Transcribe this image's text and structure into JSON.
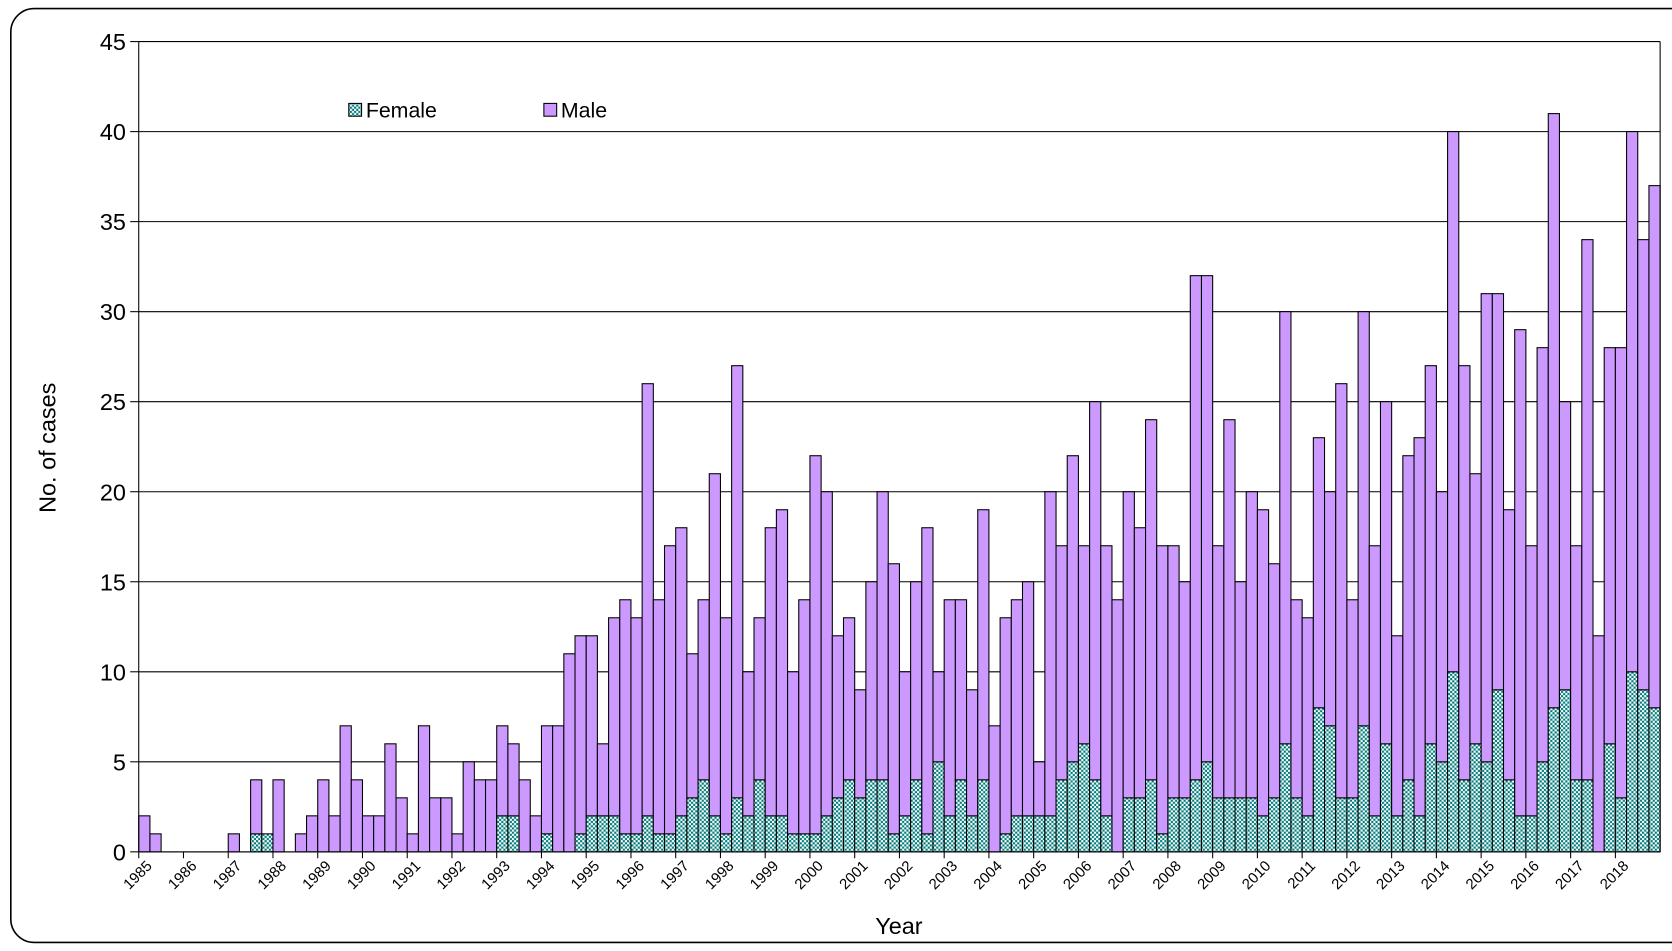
{
  "chart_data": {
    "type": "stacked_bar",
    "x_label": "Year",
    "y_label": "No. of cases",
    "categories": [
      "1985",
      null,
      null,
      null,
      "1986",
      null,
      null,
      null,
      "1987",
      null,
      null,
      null,
      "1988",
      null,
      null,
      null,
      "1989",
      null,
      null,
      null,
      "1990",
      null,
      null,
      null,
      "1991",
      null,
      null,
      null,
      "1992",
      null,
      null,
      null,
      "1993",
      null,
      null,
      null,
      "1994",
      null,
      null,
      null,
      "1995",
      null,
      null,
      null,
      "1996",
      null,
      null,
      null,
      "1997",
      null,
      null,
      null,
      "1998",
      null,
      null,
      null,
      "1999",
      null,
      null,
      null,
      "2000",
      null,
      null,
      null,
      "2001",
      null,
      null,
      null,
      "2002",
      null,
      null,
      null,
      "2003",
      null,
      null,
      null,
      "2004",
      null,
      null,
      null,
      "2005",
      null,
      null,
      null,
      "2006",
      null,
      null,
      null,
      "2007",
      null,
      null,
      null,
      "2008",
      null,
      null,
      null,
      "2009",
      null,
      null,
      null,
      "2010",
      null,
      null,
      null,
      "2011",
      null,
      null,
      null,
      "2012",
      null,
      null,
      null,
      "2013",
      null,
      null,
      null,
      "2014",
      null,
      null,
      null,
      "2015",
      null,
      null,
      null,
      "2016",
      null,
      null,
      null,
      "2017",
      null,
      null,
      null,
      "2018",
      null,
      null,
      null
    ],
    "series": [
      {
        "name": "Female",
        "color": "#007c7c",
        "pattern": "checker",
        "values": [
          0,
          0,
          0,
          0,
          0,
          0,
          0,
          0,
          0,
          0,
          1,
          1,
          0,
          0,
          0,
          0,
          0,
          0,
          0,
          0,
          0,
          0,
          0,
          0,
          0,
          0,
          0,
          0,
          0,
          0,
          0,
          0,
          2,
          2,
          0,
          0,
          1,
          0,
          0,
          1,
          2,
          2,
          2,
          1,
          1,
          2,
          1,
          1,
          2,
          3,
          4,
          2,
          1,
          3,
          2,
          4,
          2,
          2,
          1,
          1,
          1,
          2,
          3,
          4,
          3,
          4,
          4,
          1,
          2,
          4,
          1,
          5,
          2,
          4,
          2,
          4,
          0,
          1,
          2,
          2,
          2,
          2,
          4,
          5,
          6,
          4,
          2,
          0,
          3,
          3,
          4,
          1,
          3,
          3,
          4,
          5,
          3,
          3,
          3,
          3,
          2,
          3,
          6,
          3,
          2,
          8,
          7,
          3,
          3,
          7,
          2,
          6,
          2,
          4,
          2,
          6,
          5,
          10,
          4,
          6,
          5,
          9,
          4,
          2,
          2,
          5,
          8,
          9,
          4,
          4,
          0,
          6,
          3,
          10,
          9,
          8
        ]
      },
      {
        "name": "Male",
        "color": "#cc99ff",
        "values": [
          2,
          1,
          0,
          0,
          0,
          0,
          0,
          0,
          1,
          0,
          3,
          0,
          4,
          0,
          1,
          2,
          4,
          2,
          7,
          4,
          2,
          2,
          6,
          3,
          1,
          7,
          3,
          3,
          1,
          5,
          4,
          4,
          5,
          4,
          4,
          2,
          6,
          7,
          11,
          11,
          10,
          4,
          11,
          13,
          12,
          24,
          13,
          16,
          16,
          8,
          10,
          19,
          12,
          24,
          8,
          9,
          16,
          17,
          9,
          13,
          21,
          18,
          9,
          9,
          6,
          11,
          16,
          15,
          8,
          11,
          17,
          5,
          12,
          10,
          7,
          15,
          7,
          12,
          12,
          13,
          3,
          18,
          13,
          17,
          11,
          21,
          15,
          14,
          17,
          15,
          20,
          16,
          14,
          12,
          28,
          27,
          14,
          21,
          12,
          17,
          17,
          13,
          24,
          11,
          11,
          15,
          13,
          23,
          11,
          23,
          15,
          19,
          10,
          18,
          21,
          21,
          15,
          30,
          23,
          15,
          26,
          22,
          15,
          27,
          15,
          23,
          33,
          16,
          13,
          30,
          12,
          22,
          25,
          30,
          25,
          29
        ]
      }
    ],
    "ylim": [
      0,
      45
    ],
    "yticks": [
      0,
      5,
      10,
      15,
      20,
      25,
      30,
      35,
      40,
      45
    ],
    "grid": true,
    "legend": "top-left"
  }
}
